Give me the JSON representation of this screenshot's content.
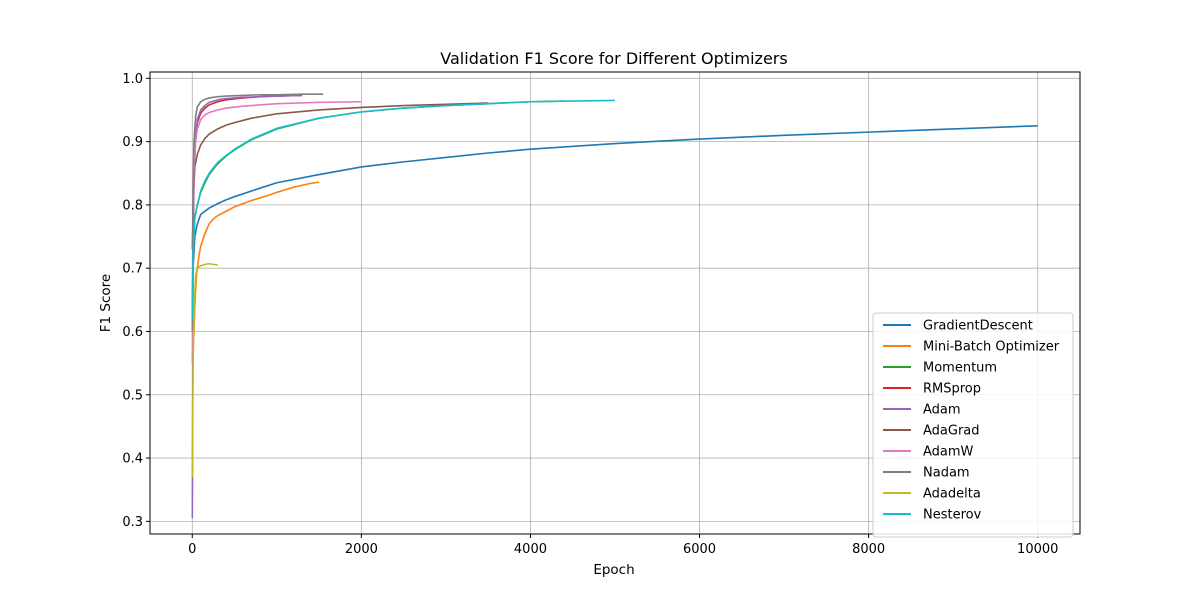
{
  "chart_data": {
    "type": "line",
    "title": "Validation F1 Score for Different Optimizers",
    "xlabel": "Epoch",
    "ylabel": "F1 Score",
    "xlim": [
      -500,
      10500
    ],
    "ylim": [
      0.28,
      1.01
    ],
    "xticks": [
      0,
      2000,
      4000,
      6000,
      8000,
      10000
    ],
    "yticks": [
      0.3,
      0.4,
      0.5,
      0.6,
      0.7,
      0.8,
      0.9,
      1.0
    ],
    "xtick_labels": [
      "0",
      "2000",
      "4000",
      "6000",
      "8000",
      "10000"
    ],
    "ytick_labels": [
      "0.3",
      "0.4",
      "0.5",
      "0.6",
      "0.7",
      "0.8",
      "0.9",
      "1.0"
    ],
    "grid": true,
    "legend_position": "lower-right",
    "series": [
      {
        "name": "GradientDescent",
        "color": "#1f77b4",
        "x": [
          1,
          10,
          30,
          60,
          100,
          150,
          200,
          300,
          400,
          500,
          700,
          1000,
          1500,
          2000,
          2500,
          3000,
          3500,
          4000,
          5000,
          6000,
          7000,
          8000,
          9000,
          10000
        ],
        "y": [
          0.62,
          0.7,
          0.75,
          0.77,
          0.785,
          0.79,
          0.795,
          0.802,
          0.808,
          0.813,
          0.822,
          0.835,
          0.848,
          0.86,
          0.868,
          0.875,
          0.882,
          0.888,
          0.897,
          0.904,
          0.91,
          0.915,
          0.92,
          0.925
        ]
      },
      {
        "name": "Mini-Batch Optimizer",
        "color": "#ff7f0e",
        "x": [
          1,
          10,
          20,
          30,
          50,
          80,
          100,
          150,
          200,
          250,
          300,
          400,
          500,
          600,
          700,
          800,
          900,
          1000,
          1100,
          1200,
          1300,
          1400,
          1500
        ],
        "y": [
          0.56,
          0.57,
          0.6,
          0.64,
          0.69,
          0.72,
          0.735,
          0.755,
          0.77,
          0.778,
          0.783,
          0.79,
          0.797,
          0.802,
          0.807,
          0.811,
          0.815,
          0.82,
          0.824,
          0.828,
          0.831,
          0.834,
          0.836
        ]
      },
      {
        "name": "Momentum",
        "color": "#2ca02c",
        "x": [
          1,
          10,
          30,
          60,
          100,
          150,
          200,
          300,
          400,
          500,
          700,
          1000,
          1500,
          2000,
          2500,
          3000,
          3500,
          4000,
          4400
        ],
        "y": [
          0.62,
          0.72,
          0.78,
          0.8,
          0.82,
          0.835,
          0.848,
          0.865,
          0.877,
          0.887,
          0.903,
          0.92,
          0.937,
          0.947,
          0.953,
          0.957,
          0.96,
          0.963,
          0.964
        ]
      },
      {
        "name": "RMSprop",
        "color": "#d62728",
        "x": [
          1,
          10,
          20,
          40,
          60,
          100,
          150,
          200,
          300,
          400,
          600,
          800,
          1000,
          1300
        ],
        "y": [
          0.6,
          0.78,
          0.86,
          0.91,
          0.93,
          0.945,
          0.953,
          0.958,
          0.963,
          0.966,
          0.969,
          0.971,
          0.972,
          0.973
        ]
      },
      {
        "name": "Adam",
        "color": "#9467bd",
        "x": [
          1,
          5,
          10,
          20,
          40,
          60,
          100,
          150,
          200,
          300,
          400,
          600,
          800,
          1000,
          1300
        ],
        "y": [
          0.305,
          0.5,
          0.7,
          0.84,
          0.91,
          0.935,
          0.95,
          0.957,
          0.962,
          0.966,
          0.968,
          0.97,
          0.971,
          0.972,
          0.973
        ]
      },
      {
        "name": "AdaGrad",
        "color": "#8c564b",
        "x": [
          1,
          10,
          30,
          60,
          100,
          150,
          200,
          300,
          400,
          500,
          700,
          1000,
          1500,
          2000,
          2500,
          3000,
          3500
        ],
        "y": [
          0.73,
          0.8,
          0.86,
          0.88,
          0.895,
          0.905,
          0.912,
          0.92,
          0.926,
          0.93,
          0.937,
          0.944,
          0.95,
          0.954,
          0.957,
          0.959,
          0.961
        ]
      },
      {
        "name": "AdamW",
        "color": "#e377c2",
        "x": [
          1,
          10,
          20,
          40,
          60,
          100,
          150,
          200,
          300,
          400,
          600,
          800,
          1000,
          1500,
          2000
        ],
        "y": [
          0.55,
          0.78,
          0.85,
          0.9,
          0.92,
          0.935,
          0.942,
          0.946,
          0.95,
          0.953,
          0.956,
          0.958,
          0.96,
          0.962,
          0.963
        ]
      },
      {
        "name": "Nadam",
        "color": "#7f7f7f",
        "x": [
          1,
          10,
          20,
          40,
          60,
          100,
          150,
          200,
          300,
          400,
          600,
          800,
          1000,
          1300,
          1550
        ],
        "y": [
          0.6,
          0.82,
          0.9,
          0.94,
          0.955,
          0.963,
          0.967,
          0.969,
          0.971,
          0.972,
          0.973,
          0.974,
          0.974,
          0.975,
          0.975
        ]
      },
      {
        "name": "Adadelta",
        "color": "#bcbd22",
        "x": [
          1,
          10,
          20,
          40,
          60,
          100,
          150,
          200,
          250,
          300
        ],
        "y": [
          0.37,
          0.55,
          0.63,
          0.69,
          0.7,
          0.704,
          0.706,
          0.707,
          0.706,
          0.705
        ]
      },
      {
        "name": "Nesterov",
        "color": "#17becf",
        "x": [
          1,
          10,
          30,
          60,
          100,
          150,
          200,
          300,
          400,
          500,
          700,
          1000,
          1500,
          2000,
          2500,
          3000,
          3500,
          4000,
          4500,
          5000
        ],
        "y": [
          0.62,
          0.72,
          0.78,
          0.8,
          0.822,
          0.838,
          0.85,
          0.867,
          0.878,
          0.888,
          0.904,
          0.921,
          0.937,
          0.947,
          0.953,
          0.957,
          0.96,
          0.963,
          0.964,
          0.965
        ]
      }
    ]
  }
}
